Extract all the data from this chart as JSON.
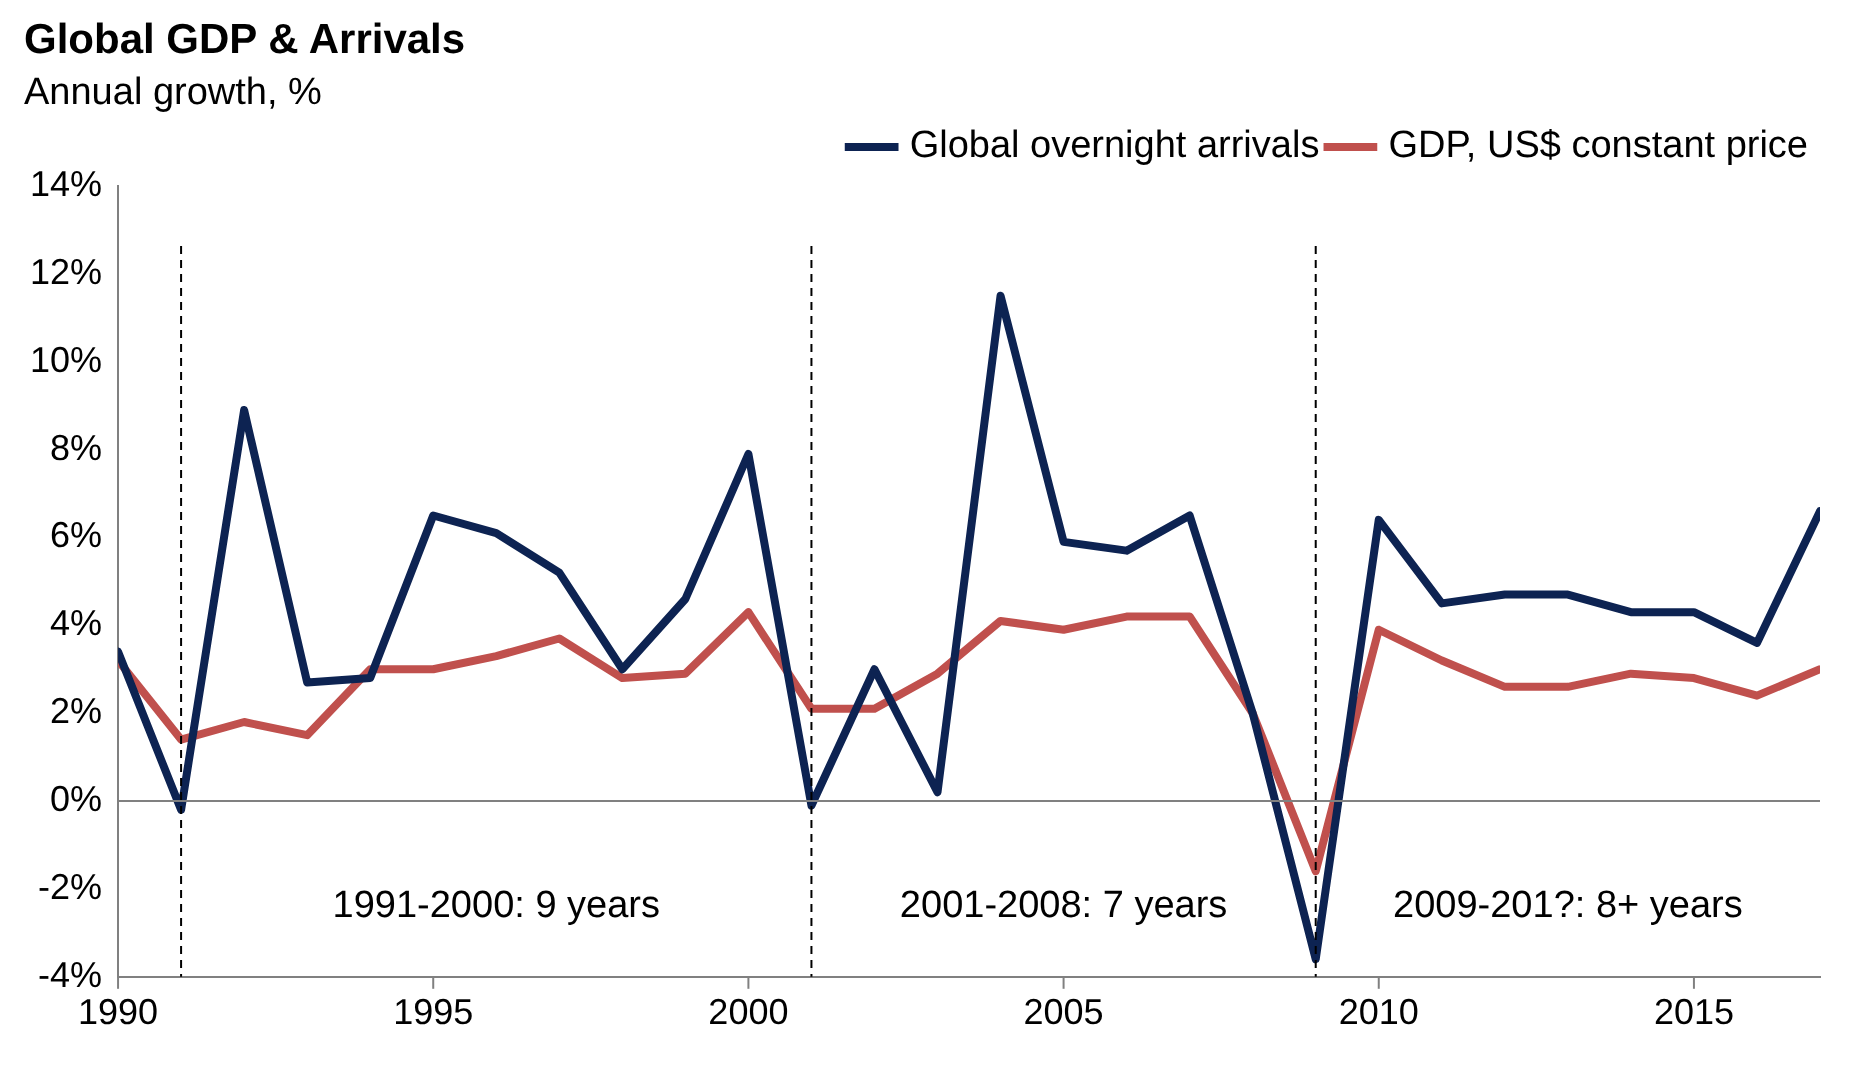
{
  "chart_data": {
    "type": "line",
    "title": "Global GDP & Arrivals",
    "subtitle": "Annual growth, %",
    "x": [
      1990,
      1991,
      1992,
      1993,
      1994,
      1995,
      1996,
      1997,
      1998,
      1999,
      2000,
      2001,
      2002,
      2003,
      2004,
      2005,
      2006,
      2007,
      2008,
      2009,
      2010,
      2011,
      2012,
      2013,
      2014,
      2015,
      2016,
      2017
    ],
    "series": [
      {
        "name": "Global overnight arrivals",
        "color": "#0d2352",
        "values": [
          3.4,
          -0.2,
          8.9,
          2.7,
          2.8,
          6.5,
          6.1,
          5.2,
          3.0,
          4.6,
          7.9,
          -0.1,
          3.0,
          0.2,
          11.5,
          5.9,
          5.7,
          6.5,
          2.0,
          -3.6,
          6.4,
          4.5,
          4.7,
          4.7,
          4.3,
          4.3,
          3.6,
          6.6
        ]
      },
      {
        "name": "GDP, US$ constant price",
        "color": "#c0504d",
        "values": [
          3.2,
          1.4,
          1.8,
          1.5,
          3.0,
          3.0,
          3.3,
          3.7,
          2.8,
          2.9,
          4.3,
          2.1,
          2.1,
          2.9,
          4.1,
          3.9,
          4.2,
          4.2,
          2.0,
          -1.6,
          3.9,
          3.2,
          2.6,
          2.6,
          2.9,
          2.8,
          2.4,
          3.0
        ]
      }
    ],
    "xlim": [
      1990,
      2017
    ],
    "xticks": [
      1990,
      1995,
      2000,
      2005,
      2010,
      2015
    ],
    "ylim": [
      -4,
      14
    ],
    "yticks": [
      {
        "value": -4,
        "label": "-4%"
      },
      {
        "value": -2,
        "label": "-2%"
      },
      {
        "value": 0,
        "label": "0%"
      },
      {
        "value": 2,
        "label": "2%"
      },
      {
        "value": 4,
        "label": "4%"
      },
      {
        "value": 6,
        "label": "6%"
      },
      {
        "value": 8,
        "label": "8%"
      },
      {
        "value": 10,
        "label": "10%"
      },
      {
        "value": 12,
        "label": "12%"
      },
      {
        "value": 14,
        "label": "14%"
      }
    ],
    "ref_lines": [
      {
        "axis": "x",
        "value": 1991,
        "color": "#000000",
        "line_style": "dashed"
      },
      {
        "axis": "x",
        "value": 2001,
        "color": "#000000",
        "line_style": "dashed"
      },
      {
        "axis": "x",
        "value": 2009,
        "color": "#000000",
        "line_style": "dashed"
      },
      {
        "axis": "y",
        "value": 0,
        "color": "#808080",
        "line_style": "solid"
      }
    ],
    "annotations": [
      "1991-2000: 9 years",
      "2001-2008: 7 years",
      "2009-201?: 8+ years"
    ],
    "grid": false,
    "legend": "top right",
    "marker": "none",
    "line_style": "solid"
  }
}
